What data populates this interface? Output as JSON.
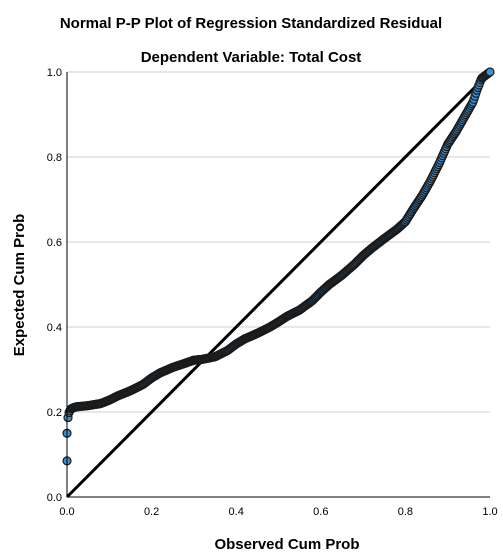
{
  "chart_data": {
    "type": "scatter",
    "title": "Normal P-P Plot of Regression Standardized Residual",
    "subtitle": "Dependent Variable: Total Cost",
    "xlabel": "Observed Cum Prob",
    "ylabel": "Expected Cum Prob",
    "xlim": [
      0,
      1
    ],
    "ylim": [
      0,
      1
    ],
    "xticks": [
      "0.0",
      "0.2",
      "0.4",
      "0.6",
      "0.8",
      "1.0"
    ],
    "yticks": [
      "0.0",
      "0.2",
      "0.4",
      "0.6",
      "0.8",
      "1.0"
    ],
    "grid": true,
    "reference_line": {
      "x": [
        0,
        1
      ],
      "y": [
        0,
        1
      ]
    },
    "point_color": "#3d8fd1",
    "point_edge_color": "#1a1a1a",
    "curve": {
      "x": [
        0.0,
        0.002,
        0.005,
        0.01,
        0.02,
        0.05,
        0.08,
        0.1,
        0.12,
        0.15,
        0.18,
        0.2,
        0.22,
        0.25,
        0.28,
        0.3,
        0.32,
        0.35,
        0.38,
        0.4,
        0.42,
        0.45,
        0.48,
        0.5,
        0.52,
        0.55,
        0.58,
        0.6,
        0.62,
        0.65,
        0.68,
        0.7,
        0.72,
        0.75,
        0.78,
        0.8,
        0.82,
        0.84,
        0.86,
        0.88,
        0.9,
        0.92,
        0.94,
        0.96,
        0.97,
        0.98,
        1.0
      ],
      "y": [
        0.15,
        0.185,
        0.2,
        0.208,
        0.212,
        0.215,
        0.22,
        0.228,
        0.238,
        0.25,
        0.265,
        0.28,
        0.292,
        0.305,
        0.315,
        0.322,
        0.324,
        0.33,
        0.345,
        0.36,
        0.372,
        0.385,
        0.4,
        0.412,
        0.425,
        0.44,
        0.462,
        0.482,
        0.5,
        0.522,
        0.548,
        0.568,
        0.585,
        0.608,
        0.63,
        0.648,
        0.68,
        0.71,
        0.745,
        0.785,
        0.83,
        0.86,
        0.895,
        0.93,
        0.96,
        0.985,
        1.0
      ]
    },
    "outliers": {
      "x": [
        0.0
      ],
      "y": [
        0.085
      ]
    }
  }
}
